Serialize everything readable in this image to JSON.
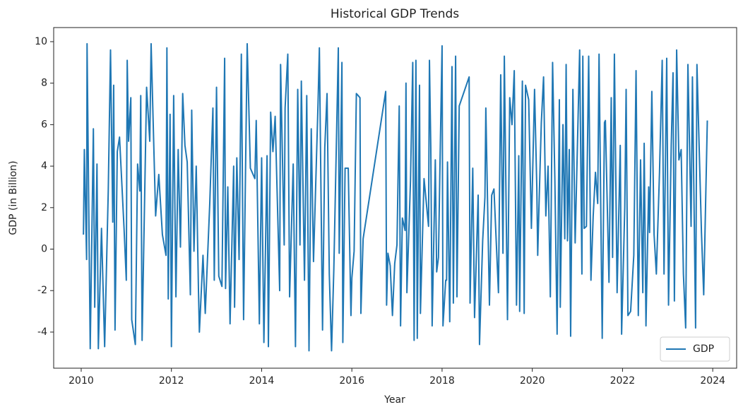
{
  "chart_data": {
    "type": "line",
    "title": "Historical GDP Trends",
    "xlabel": "Year",
    "ylabel": "GDP (in Billion)",
    "x": [
      2010.05,
      2010.07,
      2010.12,
      2010.13,
      2010.2,
      2010.27,
      2010.3,
      2010.35,
      2010.38,
      2010.45,
      2010.52,
      2010.6,
      2010.65,
      2010.7,
      2010.72,
      2010.75,
      2010.8,
      2010.85,
      2010.95,
      2011.0,
      2011.02,
      2011.05,
      2011.1,
      2011.12,
      2011.2,
      2011.25,
      2011.3,
      2011.32,
      2011.35,
      2011.45,
      2011.52,
      2011.55,
      2011.65,
      2011.72,
      2011.8,
      2011.88,
      2011.9,
      2011.93,
      2011.97,
      2012.0,
      2012.05,
      2012.1,
      2012.15,
      2012.2,
      2012.25,
      2012.3,
      2012.35,
      2012.42,
      2012.45,
      2012.5,
      2012.55,
      2012.6,
      2012.62,
      2012.7,
      2012.75,
      2012.85,
      2012.92,
      2012.95,
      2013.0,
      2013.05,
      2013.12,
      2013.18,
      2013.2,
      2013.25,
      2013.3,
      2013.38,
      2013.4,
      2013.45,
      2013.5,
      2013.55,
      2013.6,
      2013.68,
      2013.75,
      2013.85,
      2013.88,
      2013.95,
      2014.0,
      2014.05,
      2014.12,
      2014.15,
      2014.2,
      2014.25,
      2014.3,
      2014.4,
      2014.42,
      2014.5,
      2014.52,
      2014.58,
      2014.62,
      2014.7,
      2014.75,
      2014.8,
      2014.85,
      2014.88,
      2014.95,
      2015.0,
      2015.05,
      2015.1,
      2015.15,
      2015.25,
      2015.28,
      2015.35,
      2015.4,
      2015.45,
      2015.5,
      2015.55,
      2015.6,
      2015.7,
      2015.72,
      2015.78,
      2015.8,
      2015.85,
      2015.92,
      2015.98,
      2016.0,
      2016.05,
      2016.1,
      2016.18,
      2016.2,
      2016.25,
      2016.75,
      2016.77,
      2016.8,
      2016.85,
      2016.9,
      2016.95,
      2017.0,
      2017.05,
      2017.08,
      2017.12,
      2017.18,
      2017.2,
      2017.22,
      2017.3,
      2017.35,
      2017.38,
      2017.42,
      2017.45,
      2017.5,
      2017.52,
      2017.6,
      2017.7,
      2017.72,
      2017.75,
      2017.78,
      2017.85,
      2017.88,
      2017.92,
      2017.95,
      2018.0,
      2018.02,
      2018.08,
      2018.1,
      2018.12,
      2018.17,
      2018.22,
      2018.25,
      2018.3,
      2018.33,
      2018.38,
      2018.6,
      2018.62,
      2018.68,
      2018.72,
      2018.8,
      2018.83,
      2018.9,
      2018.95,
      2018.97,
      2019.05,
      2019.1,
      2019.15,
      2019.25,
      2019.3,
      2019.35,
      2019.38,
      2019.45,
      2019.5,
      2019.55,
      2019.6,
      2019.65,
      2019.7,
      2019.72,
      2019.78,
      2019.82,
      2019.85,
      2019.92,
      2019.98,
      2020.05,
      2020.1,
      2020.12,
      2020.15,
      2020.2,
      2020.25,
      2020.3,
      2020.35,
      2020.4,
      2020.45,
      2020.5,
      2020.55,
      2020.6,
      2020.62,
      2020.68,
      2020.72,
      2020.75,
      2020.78,
      2020.82,
      2020.85,
      2020.9,
      2020.95,
      2021.05,
      2021.1,
      2021.12,
      2021.15,
      2021.2,
      2021.25,
      2021.3,
      2021.35,
      2021.4,
      2021.45,
      2021.48,
      2021.55,
      2021.6,
      2021.62,
      2021.7,
      2021.75,
      2021.78,
      2021.82,
      2021.88,
      2021.95,
      2021.98,
      2022.05,
      2022.08,
      2022.12,
      2022.18,
      2022.25,
      2022.3,
      2022.35,
      2022.4,
      2022.45,
      2022.48,
      2022.52,
      2022.58,
      2022.6,
      2022.65,
      2022.7,
      2022.75,
      2022.82,
      2022.88,
      2022.92,
      2022.98,
      2023.02,
      2023.08,
      2023.12,
      2023.15,
      2023.2,
      2023.25,
      2023.3,
      2023.35,
      2023.4,
      2023.45,
      2023.52,
      2023.55,
      2023.62,
      2023.65,
      2023.75,
      2023.8,
      2023.88
    ],
    "series": [
      {
        "name": "GDP",
        "color": "#1f77b4",
        "values": [
          0.7,
          4.8,
          -0.5,
          9.9,
          -4.8,
          5.8,
          -2.8,
          4.1,
          -4.8,
          1.0,
          -4.7,
          2.8,
          9.6,
          1.3,
          7.9,
          -3.9,
          4.7,
          5.4,
          1.0,
          -1.5,
          9.1,
          5.2,
          7.3,
          -3.4,
          -4.6,
          4.1,
          2.8,
          7.4,
          -4.4,
          7.8,
          5.2,
          9.9,
          1.6,
          3.6,
          0.7,
          -0.3,
          9.7,
          -2.4,
          6.5,
          -4.7,
          7.4,
          -2.3,
          4.8,
          0.1,
          7.5,
          5.0,
          4.2,
          -2.2,
          6.7,
          -0.1,
          4.0,
          -2.0,
          -4.0,
          -0.3,
          -3.1,
          2.2,
          6.8,
          -1.5,
          7.8,
          -1.3,
          -1.8,
          9.2,
          -1.9,
          3.0,
          -3.6,
          4.0,
          -2.8,
          4.4,
          -0.5,
          9.4,
          -3.4,
          9.9,
          3.9,
          3.4,
          6.2,
          -3.6,
          4.4,
          -4.5,
          4.5,
          -4.7,
          6.6,
          4.7,
          6.4,
          -2.0,
          8.9,
          0.2,
          6.8,
          9.4,
          -2.3,
          4.1,
          -4.7,
          7.7,
          0.2,
          8.1,
          -1.5,
          7.4,
          -4.9,
          5.8,
          -0.6,
          7.0,
          9.7,
          -3.9,
          4.9,
          7.5,
          -1.2,
          -4.9,
          -1.0,
          9.7,
          -0.2,
          9.0,
          -4.5,
          3.9,
          3.9,
          -3.2,
          -1.4,
          -0.1,
          7.5,
          7.3,
          -3.1,
          0.5,
          7.6,
          -2.7,
          -0.2,
          -0.8,
          -3.2,
          -0.7,
          0.2,
          6.9,
          -3.7,
          1.5,
          0.9,
          8.0,
          -2.1,
          3.3,
          9.0,
          -4.4,
          9.1,
          -4.3,
          7.9,
          -3.1,
          3.4,
          1.1,
          9.1,
          4.9,
          -3.7,
          4.3,
          -1.1,
          -0.4,
          3.6,
          9.8,
          -3.7,
          -1.5,
          -1.5,
          4.2,
          -3.5,
          8.8,
          -2.6,
          9.3,
          -2.3,
          6.9,
          8.3,
          -2.6,
          3.9,
          -3.3,
          2.6,
          -4.6,
          0.4,
          2.5,
          6.8,
          -2.7,
          2.6,
          2.9,
          -2.1,
          8.4,
          -0.2,
          9.3,
          -3.4,
          7.3,
          6.0,
          8.6,
          -2.7,
          4.5,
          -3.0,
          8.1,
          -3.1,
          7.9,
          7.2,
          1.0,
          7.7,
          3.0,
          -0.3,
          2.2,
          6.1,
          8.3,
          1.6,
          4.0,
          -2.3,
          9.0,
          3.4,
          -4.1,
          7.2,
          -2.8,
          6.0,
          0.5,
          8.9,
          0.4,
          4.8,
          -4.2,
          7.7,
          0.3,
          9.6,
          -1.2,
          9.3,
          1.0,
          1.1,
          9.3,
          -1.5,
          1.6,
          3.7,
          2.2,
          9.4,
          -4.3,
          6.1,
          6.2,
          -1.6,
          7.3,
          -0.4,
          9.4,
          -2.1,
          5.0,
          -4.1,
          2.0,
          7.7,
          -3.2,
          -3.0,
          -0.3,
          8.6,
          -3.2,
          4.3,
          -2.1,
          5.1,
          -3.7,
          3.0,
          0.8,
          7.6,
          0.7,
          -1.2,
          3.7,
          9.1,
          -1.2,
          9.2,
          -2.7,
          5.0,
          8.5,
          -2.5,
          9.6,
          4.3,
          4.8,
          -1.2,
          -3.8,
          8.9,
          1.1,
          8.3,
          -3.8,
          8.9,
          0.8,
          -2.2,
          6.2
        ]
      }
    ],
    "xlim": [
      2009.39,
      2024.53
    ],
    "xticks": [
      2010,
      2012,
      2014,
      2016,
      2018,
      2020,
      2022,
      2024
    ],
    "ylim": [
      -5.74,
      10.68
    ],
    "yticks": [
      -4,
      -2,
      0,
      2,
      4,
      6,
      8,
      10
    ],
    "legend": "lower right"
  }
}
